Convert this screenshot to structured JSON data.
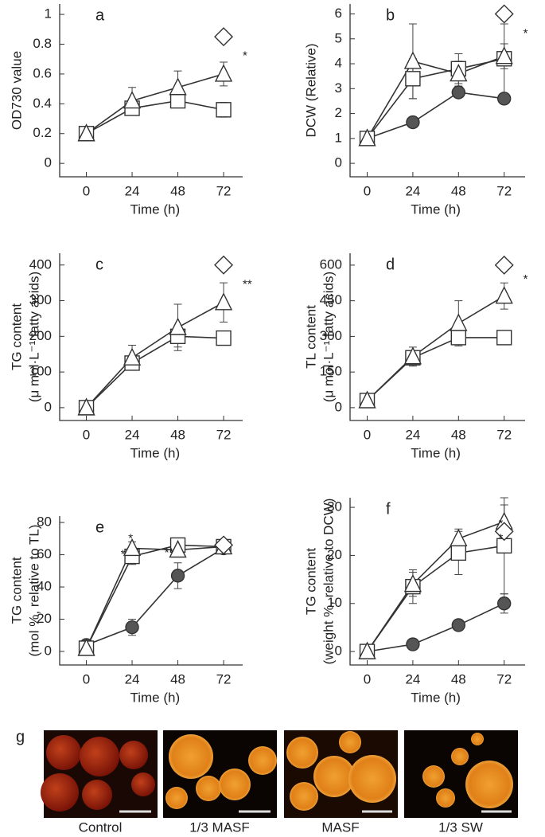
{
  "chart_data": [
    {
      "type": "line",
      "label": "a",
      "ylabel": [
        "OD730 value"
      ],
      "xlabel": "Time (h)",
      "x": [
        0,
        24,
        48,
        72
      ],
      "xlim": [
        -14,
        82
      ],
      "xticks": [
        0,
        24,
        48,
        72
      ],
      "ylim": [
        -0.09,
        1.07
      ],
      "yticks": [
        0,
        0.2,
        0.4,
        0.6,
        0.8,
        1
      ],
      "series": [
        {
          "marker": "square",
          "color": "#ffffff",
          "values": [
            0.2,
            0.37,
            0.42,
            0.36
          ],
          "errors": [
            null,
            0.04,
            0.04,
            0.05
          ]
        },
        {
          "marker": "triangle",
          "color": "#ffffff",
          "values": [
            0.2,
            0.42,
            0.51,
            0.6
          ],
          "errors": [
            null,
            0.09,
            0.11,
            0.08
          ]
        },
        {
          "marker": "diamond",
          "color": "#ffffff",
          "values": [
            null,
            null,
            null,
            0.85
          ],
          "errors": [
            null,
            null,
            null,
            null
          ]
        }
      ],
      "annotations": [
        {
          "text": "*",
          "x": 82,
          "y": 0.72
        }
      ]
    },
    {
      "type": "line",
      "label": "b",
      "ylabel": [
        "DCW (Relative)"
      ],
      "xlabel": "Time (h)",
      "x": [
        0,
        24,
        48,
        72
      ],
      "xlim": [
        -9,
        83
      ],
      "xticks": [
        0,
        24,
        48,
        72
      ],
      "ylim": [
        -0.54,
        6.4
      ],
      "yticks": [
        0,
        1,
        2,
        3,
        4,
        5,
        6
      ],
      "series": [
        {
          "marker": "circle",
          "color": "#555555",
          "values": [
            1,
            1.65,
            2.85,
            2.6
          ],
          "errors": [
            null,
            0.1,
            0.15,
            0.1
          ]
        },
        {
          "marker": "square",
          "color": "#ffffff",
          "values": [
            1,
            3.4,
            3.8,
            4.2
          ],
          "errors": [
            null,
            0.8,
            0.6,
            1.4
          ]
        },
        {
          "marker": "triangle",
          "color": "#ffffff",
          "values": [
            1,
            4.1,
            3.6,
            4.3
          ],
          "errors": [
            null,
            1.5,
            0.5,
            0.5
          ]
        },
        {
          "marker": "diamond",
          "color": "#ffffff",
          "values": [
            null,
            null,
            null,
            6
          ],
          "errors": [
            null,
            null,
            null,
            null
          ]
        }
      ],
      "annotations": [
        {
          "text": "*",
          "x": 82,
          "y": 5.2
        }
      ]
    },
    {
      "type": "line",
      "label": "c",
      "ylabel": [
        "TG content",
        "(μ mol·L⁻¹ fatty acids)"
      ],
      "xlabel": "Time (h)",
      "x": [
        0,
        24,
        48,
        72
      ],
      "xlim": [
        -14,
        82
      ],
      "xticks": [
        0,
        24,
        48,
        72
      ],
      "ylim": [
        -36,
        433
      ],
      "yticks": [
        0,
        100,
        200,
        300,
        400
      ],
      "series": [
        {
          "marker": "square",
          "color": "#ffffff",
          "values": [
            0,
            125,
            200,
            195
          ],
          "errors": [
            null,
            20,
            30,
            12
          ]
        },
        {
          "marker": "triangle",
          "color": "#ffffff",
          "values": [
            0,
            140,
            225,
            295
          ],
          "errors": [
            null,
            35,
            65,
            55
          ]
        },
        {
          "marker": "diamond",
          "color": "#ffffff",
          "values": [
            null,
            null,
            null,
            400
          ],
          "errors": [
            null,
            null,
            null,
            null
          ]
        }
      ],
      "annotations": [
        {
          "text": "**",
          "x": 82,
          "y": 345
        }
      ]
    },
    {
      "type": "line",
      "label": "d",
      "ylabel": [
        "TL content",
        "(μ mol·L⁻¹ fatty acids)"
      ],
      "xlabel": "Time (h)",
      "x": [
        0,
        24,
        48,
        72
      ],
      "xlim": [
        -9,
        83
      ],
      "xticks": [
        0,
        24,
        48,
        72
      ],
      "ylim": [
        -54,
        650
      ],
      "yticks": [
        0,
        150,
        300,
        450,
        600
      ],
      "series": [
        {
          "marker": "square",
          "color": "#ffffff",
          "values": [
            30,
            210,
            295,
            295
          ],
          "errors": [
            null,
            15,
            25,
            25
          ]
        },
        {
          "marker": "triangle",
          "color": "#ffffff",
          "values": [
            30,
            215,
            355,
            470
          ],
          "errors": [
            null,
            40,
            95,
            55
          ]
        },
        {
          "marker": "diamond",
          "color": "#ffffff",
          "values": [
            null,
            null,
            null,
            600
          ],
          "errors": [
            null,
            null,
            null,
            null
          ]
        }
      ],
      "annotations": [
        {
          "text": "*",
          "x": 82,
          "y": 540
        }
      ]
    },
    {
      "type": "line",
      "label": "e",
      "ylabel": [
        "TG content",
        "(mol %, relative to TL)"
      ],
      "xlabel": "Time (h)",
      "x": [
        0,
        24,
        48,
        72
      ],
      "xlim": [
        -14,
        82
      ],
      "xticks": [
        0,
        24,
        48,
        72
      ],
      "ylim": [
        -8.4,
        84
      ],
      "yticks": [
        0,
        20,
        40,
        60,
        80
      ],
      "series": [
        {
          "marker": "circle",
          "color": "#555555",
          "values": [
            4,
            15,
            47,
            64
          ],
          "errors": [
            null,
            5,
            8,
            3
          ]
        },
        {
          "marker": "square",
          "color": "#ffffff",
          "values": [
            2,
            59,
            66,
            65
          ],
          "errors": [
            null,
            5,
            3,
            3
          ]
        },
        {
          "marker": "triangle",
          "color": "#ffffff",
          "values": [
            2,
            64,
            63,
            65
          ],
          "errors": [
            null,
            4,
            3,
            3
          ]
        },
        {
          "marker": "diamond",
          "color": "#ffffff",
          "values": [
            null,
            null,
            null,
            66
          ],
          "errors": [
            null,
            null,
            null,
            null
          ]
        }
      ],
      "annotations": [
        {
          "text": "*",
          "x": 22,
          "y": 70
        },
        {
          "text": "*",
          "x": 18,
          "y": 60
        },
        {
          "text": "**",
          "x": 41,
          "y": 61
        }
      ]
    },
    {
      "type": "line",
      "label": "f",
      "ylabel": [
        "TG content",
        "(weight %, relative to DCW)"
      ],
      "xlabel": "Time (h)",
      "x": [
        0,
        24,
        48,
        72
      ],
      "xlim": [
        -9,
        83
      ],
      "xticks": [
        0,
        24,
        48,
        72
      ],
      "ylim": [
        -2.8,
        32
      ],
      "yticks": [
        0,
        10,
        20,
        30
      ],
      "series": [
        {
          "marker": "circle",
          "color": "#555555",
          "values": [
            0,
            1.5,
            5.5,
            10
          ],
          "errors": [
            null,
            null,
            null,
            2
          ]
        },
        {
          "marker": "square",
          "color": "#ffffff",
          "values": [
            0,
            13.5,
            20.5,
            22
          ],
          "errors": [
            null,
            3.5,
            4.5,
            10
          ]
        },
        {
          "marker": "triangle",
          "color": "#ffffff",
          "values": [
            0,
            14,
            23.5,
            27
          ],
          "errors": [
            null,
            2.5,
            2,
            3.5
          ]
        },
        {
          "marker": "diamond",
          "color": "#ffffff",
          "values": [
            null,
            null,
            null,
            25
          ],
          "errors": [
            null,
            null,
            null,
            null
          ]
        }
      ],
      "annotations": [
        {
          "text": "*",
          "x": 69,
          "y": 26.5
        },
        {
          "text": "*",
          "x": 69,
          "y": 23.5
        }
      ]
    }
  ],
  "panel_g": {
    "label": "g",
    "captions": [
      "Control",
      "1/3 MASF",
      "MASF",
      "1/3 SW"
    ]
  }
}
